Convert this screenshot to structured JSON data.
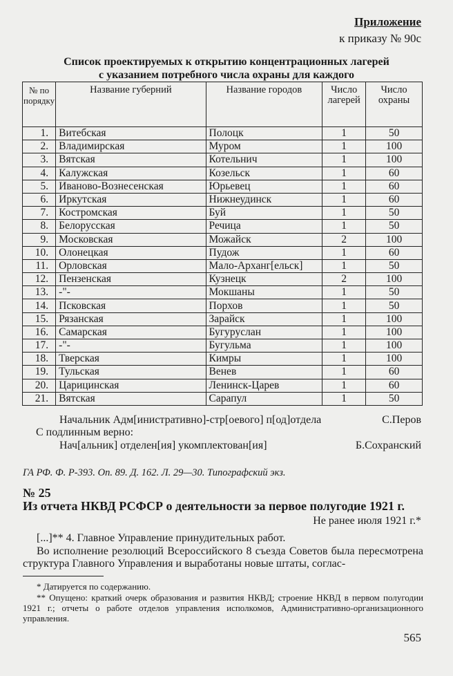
{
  "header": {
    "appendix": "Приложение",
    "order": "к приказу № 90с"
  },
  "list_title": {
    "line1": "Список проектируемых к открытию концентрационных лагерей",
    "line2": "с указанием потребного числа охраны для каждого"
  },
  "table": {
    "headers": [
      "№ по порядку",
      "Название губерний",
      "Название городов",
      "Число лагерей",
      "Число охраны"
    ],
    "rows": [
      [
        "1.",
        "Витебская",
        "Полоцк",
        "1",
        "50"
      ],
      [
        "2.",
        "Владимирская",
        "Муром",
        "1",
        "100"
      ],
      [
        "3.",
        "Вятская",
        "Котельнич",
        "1",
        "100"
      ],
      [
        "4.",
        "Калужская",
        "Козельск",
        "1",
        "60"
      ],
      [
        "5.",
        "Иваново-Вознесенская",
        "Юрьевец",
        "1",
        "60"
      ],
      [
        "6.",
        "Иркутская",
        "Нижнеудинск",
        "1",
        "60"
      ],
      [
        "7.",
        "Костромская",
        "Буй",
        "1",
        "50"
      ],
      [
        "8.",
        "Белорусская",
        "Речица",
        "1",
        "50"
      ],
      [
        "9.",
        "Московская",
        "Можайск",
        "2",
        "100"
      ],
      [
        "10.",
        "Олонецкая",
        "Пудож",
        "1",
        "60"
      ],
      [
        "11.",
        "Орловская",
        "Мало-Арханг[ельск]",
        "1",
        "50"
      ],
      [
        "12.",
        "Пензенская",
        "Кузнецк",
        "2",
        "100"
      ],
      [
        "13.",
        "-\"-",
        "Мокшаны",
        "1",
        "50"
      ],
      [
        "14.",
        "Псковская",
        "Порхов",
        "1",
        "50"
      ],
      [
        "15.",
        "Рязанская",
        "Зарайск",
        "1",
        "100"
      ],
      [
        "16.",
        "Самарская",
        "Бугуруслан",
        "1",
        "100"
      ],
      [
        "17.",
        "-\"-",
        "Бугульма",
        "1",
        "100"
      ],
      [
        "18.",
        "Тверская",
        "Кимры",
        "1",
        "100"
      ],
      [
        "19.",
        "Тульская",
        "Венев",
        "1",
        "60"
      ],
      [
        "20.",
        "Царицинская",
        "Ленинск-Царев",
        "1",
        "60"
      ],
      [
        "21.",
        "Вятская",
        "Сарапул",
        "1",
        "50"
      ]
    ]
  },
  "signatures": {
    "s1_title": "Начальник Адм[инистративно]-стр[оевого] п[од]отдела",
    "s1_name": "С.Перов",
    "certified": "С подлинным верно:",
    "s2_title": "Нач[альник] отделен[ия] укомплектован[ия]",
    "s2_name": "Б.Сохранский"
  },
  "source": "ГА РФ. Ф. Р-393. Оп. 89. Д. 162. Л. 29—30. Типографский экз.",
  "document": {
    "number": "№ 25",
    "title": "Из отчета НКВД РСФСР о деятельности за первое полугодие 1921 г.",
    "date": "Не ранее июля 1921 г.*",
    "para1": "[...]** 4. Главное Управление принудительных работ.",
    "para2": "Во исполнение резолюций Всероссийского 8 съезда Советов была пересмотрена структура Главного Управления и выработаны новые штаты, соглас-"
  },
  "footnotes": [
    "* Датируется по содержанию.",
    "** Опущено: краткий очерк образования и развития НКВД; строение НКВД в первом полугодии 1921 г.; отчеты о работе отделов управления исполкомов, Административно-организационного управления."
  ],
  "page_number": "565"
}
